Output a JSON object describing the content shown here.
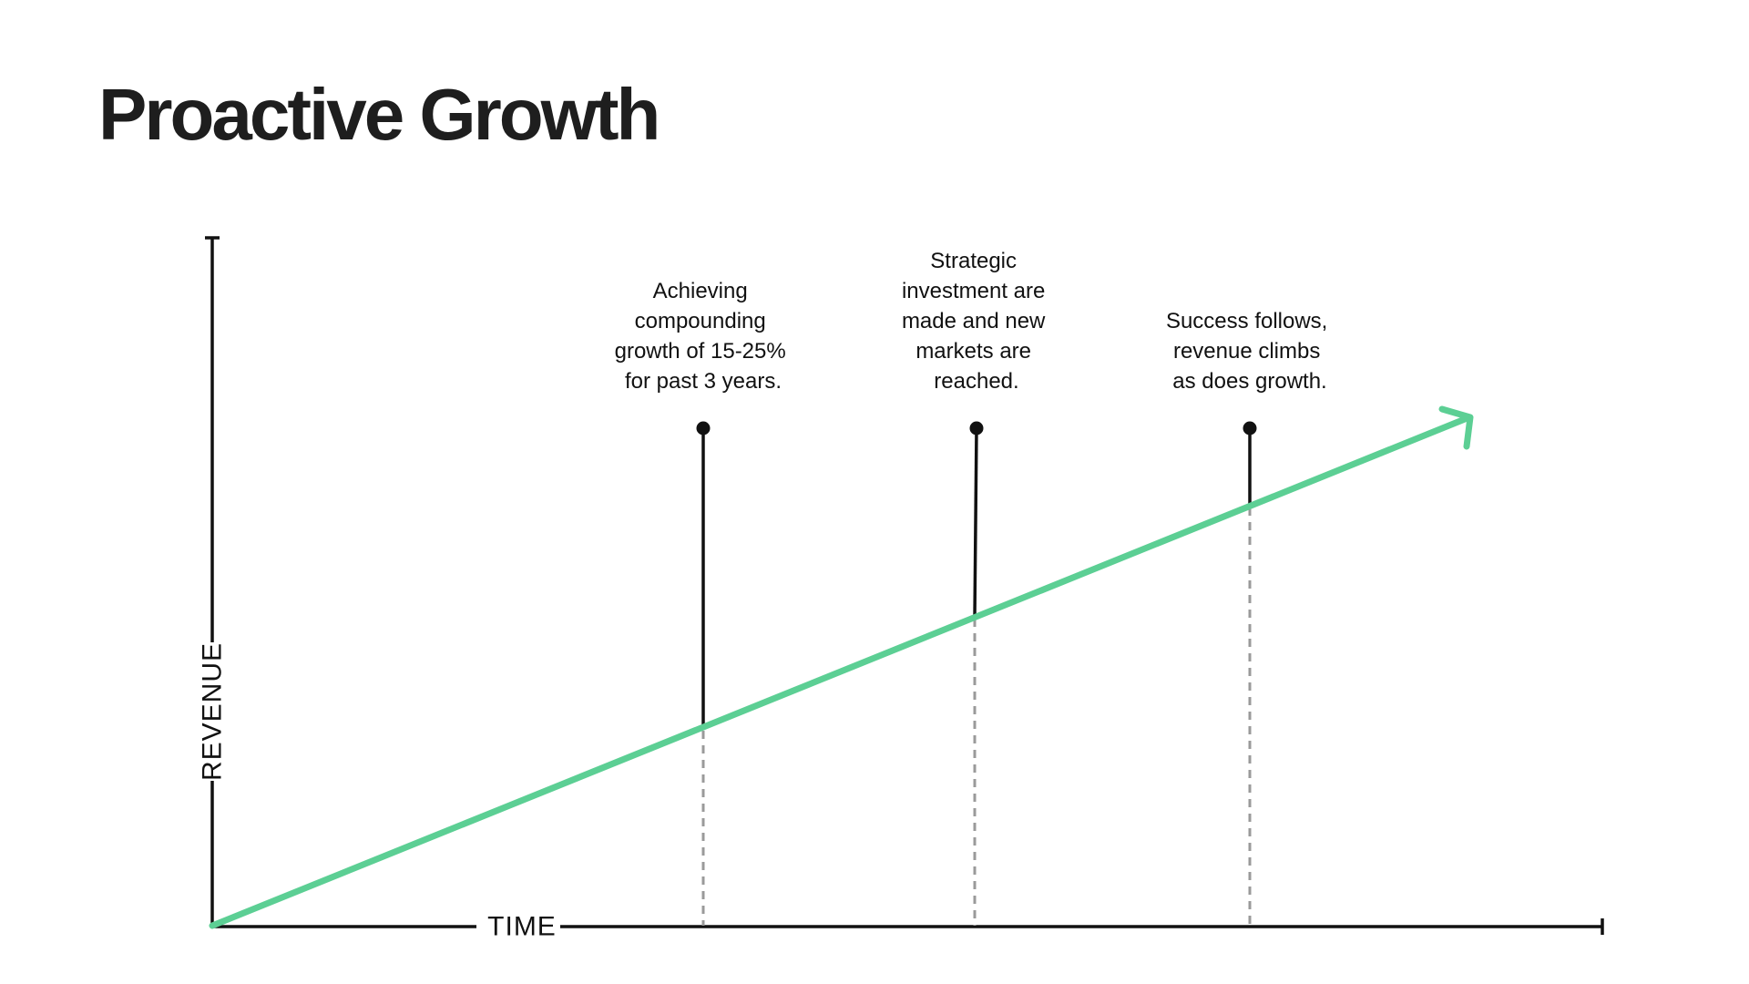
{
  "title": "Proactive Growth",
  "axes": {
    "y_label": "REVENUE",
    "x_label": "TIME"
  },
  "trend_color": "#5ccf94",
  "annotations": [
    {
      "lines": [
        "Achieving",
        "compounding",
        "growth of 15-25%",
        "for past 3 years."
      ]
    },
    {
      "lines": [
        "Strategic",
        "investment are",
        "made and new",
        "markets are",
        "reached."
      ]
    },
    {
      "lines": [
        "Success follows,",
        "revenue climbs",
        "as does growth."
      ]
    }
  ]
}
